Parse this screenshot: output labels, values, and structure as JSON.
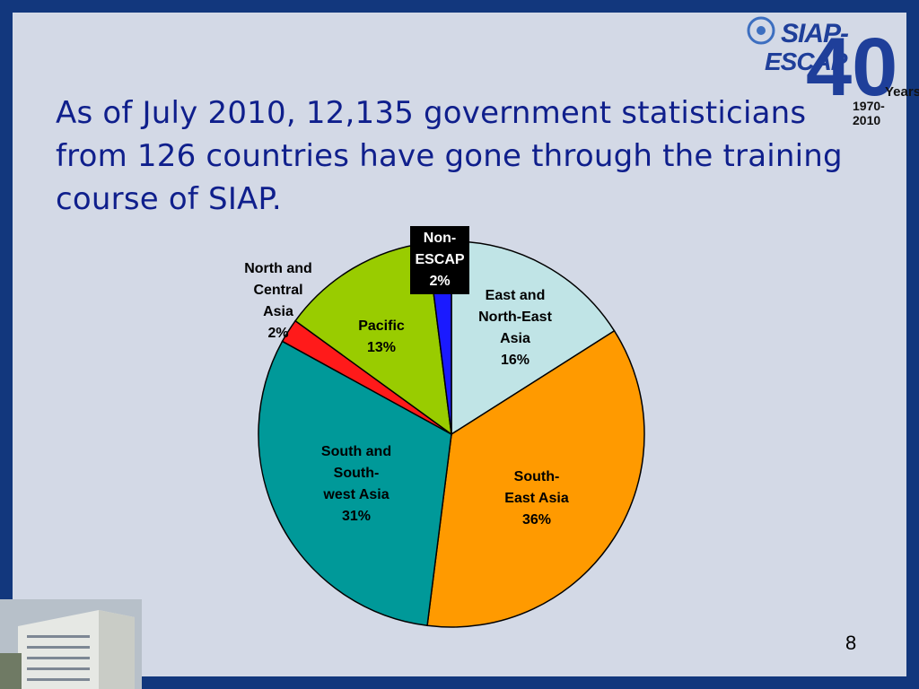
{
  "slide": {
    "title": "As of July 2010, 12,135 government statisticians from 126 countries have gone through the training course of SIAP.",
    "page_number": "8",
    "logo": {
      "line1": "SIAP-",
      "line2": "ESCAP",
      "number": "40",
      "years": "Years",
      "range": "1970-2010"
    },
    "colors": {
      "frame": "#12377d",
      "background": "#d3d9e6",
      "title": "#0f1f8c"
    }
  },
  "chart_data": {
    "type": "pie",
    "title": "",
    "unit": "%",
    "start": "12 o'clock, clockwise",
    "slices": [
      {
        "label_lines": [
          "East and",
          "North-East",
          "Asia"
        ],
        "value": 16,
        "display": "16%",
        "color": "#c0e4e6"
      },
      {
        "label_lines": [
          "South-",
          "East Asia"
        ],
        "value": 36,
        "display": "36%",
        "color": "#ff9a00"
      },
      {
        "label_lines": [
          "South and",
          "South-",
          "west Asia"
        ],
        "value": 31,
        "display": "31%",
        "color": "#009999"
      },
      {
        "label_lines": [
          "North and",
          "Central",
          "Asia"
        ],
        "value": 2,
        "display": "2%",
        "color": "#ff1a1a"
      },
      {
        "label_lines": [
          "Pacific"
        ],
        "value": 13,
        "display": "13%",
        "color": "#99cc00"
      },
      {
        "label_lines": [
          "Non-",
          "ESCAP"
        ],
        "value": 2,
        "display": "2%",
        "color": "#1a1aff"
      }
    ]
  }
}
